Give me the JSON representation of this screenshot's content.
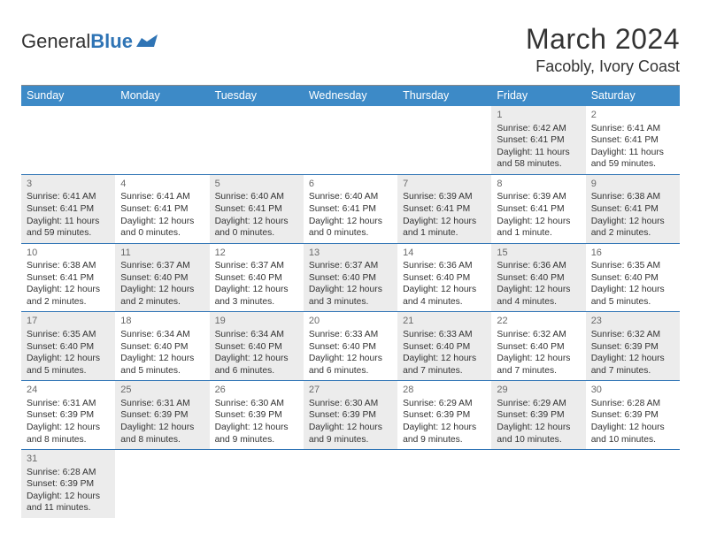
{
  "branding": {
    "word1": "General",
    "word2": "Blue"
  },
  "title": "March 2024",
  "location": "Facobly, Ivory Coast",
  "colors": {
    "header_bg": "#3d8ac7",
    "accent": "#2f74b5",
    "shade_bg": "#ececec",
    "text": "#333333",
    "daynum": "#6a6a6a"
  },
  "days_of_week": [
    "Sunday",
    "Monday",
    "Tuesday",
    "Wednesday",
    "Thursday",
    "Friday",
    "Saturday"
  ],
  "weeks": [
    [
      null,
      null,
      null,
      null,
      null,
      {
        "n": "1",
        "sr": "Sunrise: 6:42 AM",
        "ss": "Sunset: 6:41 PM",
        "dl": "Daylight: 11 hours and 58 minutes."
      },
      {
        "n": "2",
        "sr": "Sunrise: 6:41 AM",
        "ss": "Sunset: 6:41 PM",
        "dl": "Daylight: 11 hours and 59 minutes."
      }
    ],
    [
      {
        "n": "3",
        "sr": "Sunrise: 6:41 AM",
        "ss": "Sunset: 6:41 PM",
        "dl": "Daylight: 11 hours and 59 minutes."
      },
      {
        "n": "4",
        "sr": "Sunrise: 6:41 AM",
        "ss": "Sunset: 6:41 PM",
        "dl": "Daylight: 12 hours and 0 minutes."
      },
      {
        "n": "5",
        "sr": "Sunrise: 6:40 AM",
        "ss": "Sunset: 6:41 PM",
        "dl": "Daylight: 12 hours and 0 minutes."
      },
      {
        "n": "6",
        "sr": "Sunrise: 6:40 AM",
        "ss": "Sunset: 6:41 PM",
        "dl": "Daylight: 12 hours and 0 minutes."
      },
      {
        "n": "7",
        "sr": "Sunrise: 6:39 AM",
        "ss": "Sunset: 6:41 PM",
        "dl": "Daylight: 12 hours and 1 minute."
      },
      {
        "n": "8",
        "sr": "Sunrise: 6:39 AM",
        "ss": "Sunset: 6:41 PM",
        "dl": "Daylight: 12 hours and 1 minute."
      },
      {
        "n": "9",
        "sr": "Sunrise: 6:38 AM",
        "ss": "Sunset: 6:41 PM",
        "dl": "Daylight: 12 hours and 2 minutes."
      }
    ],
    [
      {
        "n": "10",
        "sr": "Sunrise: 6:38 AM",
        "ss": "Sunset: 6:41 PM",
        "dl": "Daylight: 12 hours and 2 minutes."
      },
      {
        "n": "11",
        "sr": "Sunrise: 6:37 AM",
        "ss": "Sunset: 6:40 PM",
        "dl": "Daylight: 12 hours and 2 minutes."
      },
      {
        "n": "12",
        "sr": "Sunrise: 6:37 AM",
        "ss": "Sunset: 6:40 PM",
        "dl": "Daylight: 12 hours and 3 minutes."
      },
      {
        "n": "13",
        "sr": "Sunrise: 6:37 AM",
        "ss": "Sunset: 6:40 PM",
        "dl": "Daylight: 12 hours and 3 minutes."
      },
      {
        "n": "14",
        "sr": "Sunrise: 6:36 AM",
        "ss": "Sunset: 6:40 PM",
        "dl": "Daylight: 12 hours and 4 minutes."
      },
      {
        "n": "15",
        "sr": "Sunrise: 6:36 AM",
        "ss": "Sunset: 6:40 PM",
        "dl": "Daylight: 12 hours and 4 minutes."
      },
      {
        "n": "16",
        "sr": "Sunrise: 6:35 AM",
        "ss": "Sunset: 6:40 PM",
        "dl": "Daylight: 12 hours and 5 minutes."
      }
    ],
    [
      {
        "n": "17",
        "sr": "Sunrise: 6:35 AM",
        "ss": "Sunset: 6:40 PM",
        "dl": "Daylight: 12 hours and 5 minutes."
      },
      {
        "n": "18",
        "sr": "Sunrise: 6:34 AM",
        "ss": "Sunset: 6:40 PM",
        "dl": "Daylight: 12 hours and 5 minutes."
      },
      {
        "n": "19",
        "sr": "Sunrise: 6:34 AM",
        "ss": "Sunset: 6:40 PM",
        "dl": "Daylight: 12 hours and 6 minutes."
      },
      {
        "n": "20",
        "sr": "Sunrise: 6:33 AM",
        "ss": "Sunset: 6:40 PM",
        "dl": "Daylight: 12 hours and 6 minutes."
      },
      {
        "n": "21",
        "sr": "Sunrise: 6:33 AM",
        "ss": "Sunset: 6:40 PM",
        "dl": "Daylight: 12 hours and 7 minutes."
      },
      {
        "n": "22",
        "sr": "Sunrise: 6:32 AM",
        "ss": "Sunset: 6:40 PM",
        "dl": "Daylight: 12 hours and 7 minutes."
      },
      {
        "n": "23",
        "sr": "Sunrise: 6:32 AM",
        "ss": "Sunset: 6:39 PM",
        "dl": "Daylight: 12 hours and 7 minutes."
      }
    ],
    [
      {
        "n": "24",
        "sr": "Sunrise: 6:31 AM",
        "ss": "Sunset: 6:39 PM",
        "dl": "Daylight: 12 hours and 8 minutes."
      },
      {
        "n": "25",
        "sr": "Sunrise: 6:31 AM",
        "ss": "Sunset: 6:39 PM",
        "dl": "Daylight: 12 hours and 8 minutes."
      },
      {
        "n": "26",
        "sr": "Sunrise: 6:30 AM",
        "ss": "Sunset: 6:39 PM",
        "dl": "Daylight: 12 hours and 9 minutes."
      },
      {
        "n": "27",
        "sr": "Sunrise: 6:30 AM",
        "ss": "Sunset: 6:39 PM",
        "dl": "Daylight: 12 hours and 9 minutes."
      },
      {
        "n": "28",
        "sr": "Sunrise: 6:29 AM",
        "ss": "Sunset: 6:39 PM",
        "dl": "Daylight: 12 hours and 9 minutes."
      },
      {
        "n": "29",
        "sr": "Sunrise: 6:29 AM",
        "ss": "Sunset: 6:39 PM",
        "dl": "Daylight: 12 hours and 10 minutes."
      },
      {
        "n": "30",
        "sr": "Sunrise: 6:28 AM",
        "ss": "Sunset: 6:39 PM",
        "dl": "Daylight: 12 hours and 10 minutes."
      }
    ],
    [
      {
        "n": "31",
        "sr": "Sunrise: 6:28 AM",
        "ss": "Sunset: 6:39 PM",
        "dl": "Daylight: 12 hours and 11 minutes."
      },
      null,
      null,
      null,
      null,
      null,
      null
    ]
  ]
}
